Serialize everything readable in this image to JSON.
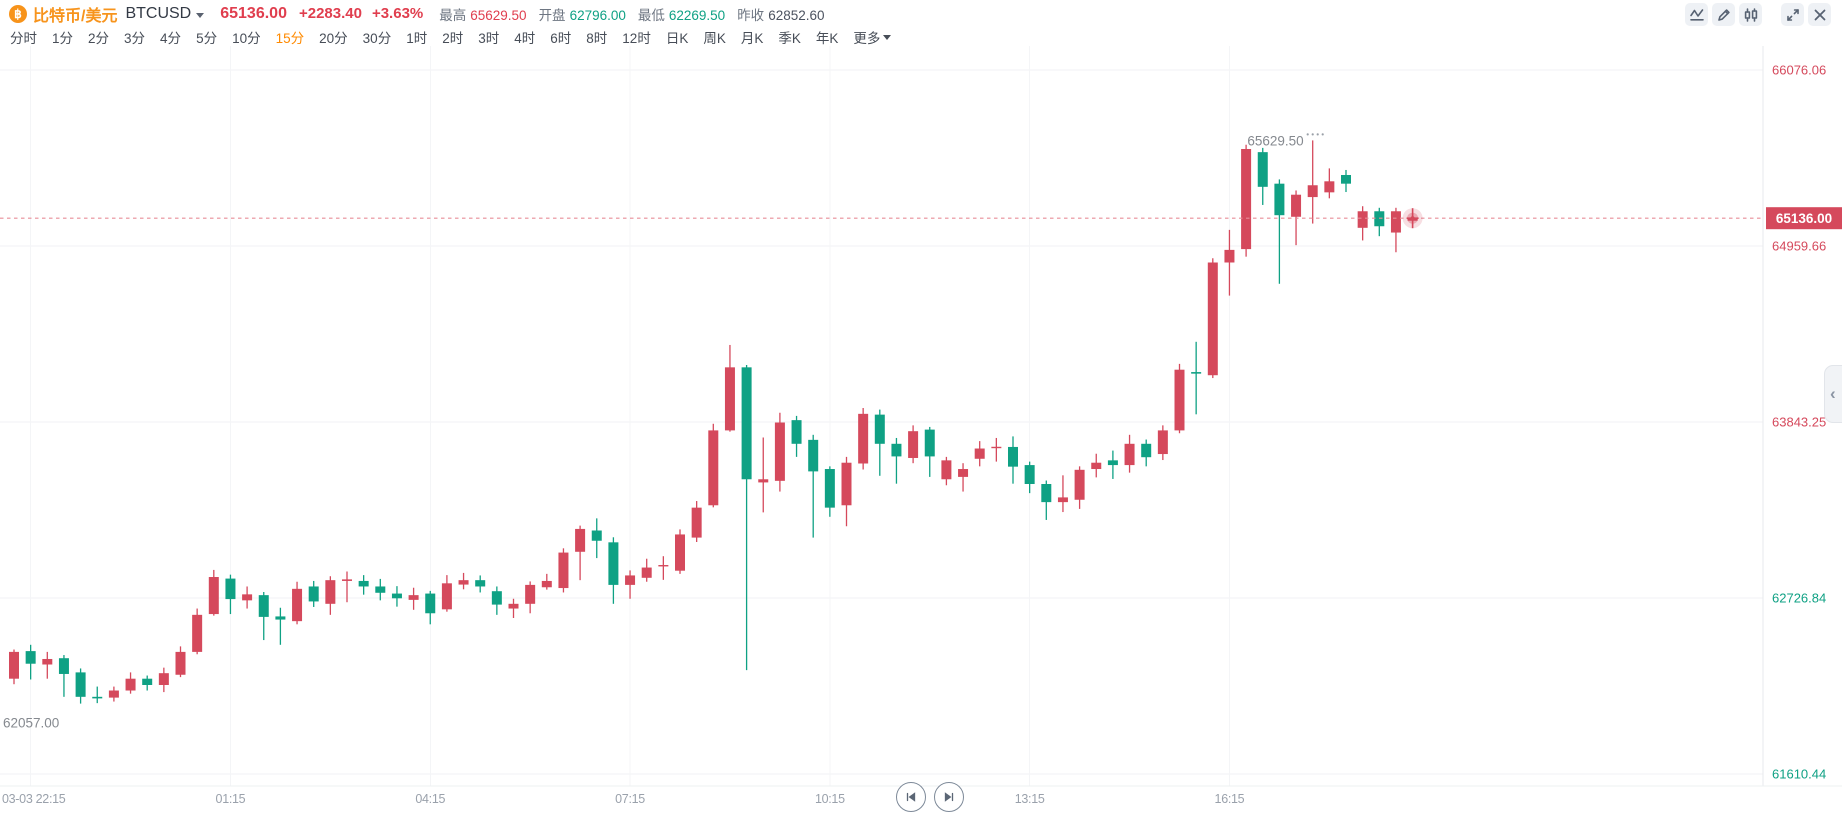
{
  "header": {
    "coin_icon": "฿",
    "symbol_cn": "比特币/美元",
    "symbol_code": "BTCUSD",
    "price": "65136.00",
    "change": "+2283.40",
    "change_pct": "+3.63%",
    "stats": [
      {
        "label": "最高",
        "value": "65629.50",
        "trend": "up"
      },
      {
        "label": "开盘",
        "value": "62796.00",
        "trend": "down"
      },
      {
        "label": "最低",
        "value": "62269.50",
        "trend": "down"
      },
      {
        "label": "昨收",
        "value": "62852.60",
        "trend": "neutral"
      }
    ]
  },
  "toolbar": {
    "buttons": [
      {
        "name": "indicator-line-icon"
      },
      {
        "name": "draw-pencil-icon"
      },
      {
        "name": "candlestick-style-icon"
      },
      {
        "name": "fullscreen-icon"
      },
      {
        "name": "close-icon"
      }
    ]
  },
  "tabs": {
    "items": [
      "分时",
      "1分",
      "2分",
      "3分",
      "4分",
      "5分",
      "10分",
      "15分",
      "20分",
      "30分",
      "1时",
      "2时",
      "3时",
      "4时",
      "6时",
      "8时",
      "12时",
      "日K",
      "周K",
      "月K",
      "季K",
      "年K"
    ],
    "selected": "15分",
    "more": "更多"
  },
  "chart_data": {
    "type": "candlestick",
    "symbol": "BTCUSD",
    "interval": "15分",
    "colors": {
      "up": "#d5495c",
      "down": "#0fa184",
      "grid": "#f1f2f4",
      "axis": "#e7e9ed",
      "current_line": "#e88d98"
    },
    "prev_close": 62852.6,
    "y_axis": {
      "labels": [
        {
          "text": "66076.06",
          "price": 66076.06
        },
        {
          "text": "64959.66",
          "price": 64959.66
        },
        {
          "text": "63843.25",
          "price": 63843.25
        },
        {
          "text": "62726.84",
          "price": 62726.84
        },
        {
          "text": "61610.44",
          "price": 61610.44
        }
      ]
    },
    "x_axis": {
      "labels": [
        {
          "text": "03-03 22:15",
          "index": 1
        },
        {
          "text": "01:15",
          "index": 13
        },
        {
          "text": "04:15",
          "index": 25
        },
        {
          "text": "07:15",
          "index": 37
        },
        {
          "text": "10:15",
          "index": 49
        },
        {
          "text": "13:15",
          "index": 61
        },
        {
          "text": "16:15",
          "index": 73
        }
      ]
    },
    "current_price": {
      "text": "65136.00",
      "price": 65136.0
    },
    "annotations": {
      "high": {
        "text": "65629.50",
        "price": 65629.5,
        "index": 78
      },
      "low": {
        "text": "62057.00",
        "price": 62057.0,
        "index": 4
      }
    },
    "ohlc_order": [
      "open",
      "high",
      "low",
      "close"
    ],
    "candles": [
      [
        62215,
        62400,
        62180,
        62385
      ],
      [
        62390,
        62430,
        62210,
        62310
      ],
      [
        62305,
        62385,
        62215,
        62340
      ],
      [
        62345,
        62365,
        62100,
        62245
      ],
      [
        62255,
        62280,
        62057,
        62100
      ],
      [
        62100,
        62165,
        62060,
        62090
      ],
      [
        62095,
        62165,
        62070,
        62140
      ],
      [
        62140,
        62255,
        62120,
        62215
      ],
      [
        62215,
        62235,
        62140,
        62175
      ],
      [
        62175,
        62285,
        62130,
        62250
      ],
      [
        62240,
        62420,
        62225,
        62385
      ],
      [
        62385,
        62660,
        62370,
        62620
      ],
      [
        62625,
        62905,
        62615,
        62860
      ],
      [
        62850,
        62875,
        62625,
        62720
      ],
      [
        62712,
        62800,
        62660,
        62750
      ],
      [
        62745,
        62765,
        62460,
        62607
      ],
      [
        62610,
        62665,
        62430,
        62590
      ],
      [
        62580,
        62830,
        62560,
        62785
      ],
      [
        62800,
        62835,
        62670,
        62705
      ],
      [
        62690,
        62865,
        62620,
        62840
      ],
      [
        62835,
        62895,
        62700,
        62845
      ],
      [
        62835,
        62872,
        62748,
        62800
      ],
      [
        62800,
        62848,
        62712,
        62760
      ],
      [
        62755,
        62802,
        62672,
        62725
      ],
      [
        62715,
        62792,
        62652,
        62745
      ],
      [
        62755,
        62772,
        62560,
        62630
      ],
      [
        62655,
        62872,
        62640,
        62820
      ],
      [
        62812,
        62886,
        62782,
        62840
      ],
      [
        62840,
        62870,
        62762,
        62800
      ],
      [
        62770,
        62800,
        62620,
        62685
      ],
      [
        62660,
        62722,
        62600,
        62690
      ],
      [
        62690,
        62832,
        62630,
        62810
      ],
      [
        62795,
        62880,
        62780,
        62835
      ],
      [
        62790,
        63042,
        62762,
        63015
      ],
      [
        63020,
        63186,
        62840,
        63165
      ],
      [
        63155,
        63232,
        62980,
        63090
      ],
      [
        63080,
        63112,
        62690,
        62810
      ],
      [
        62810,
        62902,
        62722,
        62870
      ],
      [
        62855,
        62976,
        62830,
        62920
      ],
      [
        62932,
        62992,
        62842,
        62936
      ],
      [
        62900,
        63162,
        62880,
        63130
      ],
      [
        63110,
        63342,
        63082,
        63300
      ],
      [
        63315,
        63832,
        63302,
        63790
      ],
      [
        63790,
        64332,
        63782,
        64190
      ],
      [
        64190,
        64205,
        62269.5,
        63480
      ],
      [
        63460,
        63745,
        63270,
        63480
      ],
      [
        63470,
        63902,
        63402,
        63840
      ],
      [
        63855,
        63882,
        63622,
        63705
      ],
      [
        63730,
        63762,
        63110,
        63530
      ],
      [
        63545,
        63562,
        63242,
        63300
      ],
      [
        63315,
        63622,
        63182,
        63585
      ],
      [
        63580,
        63932,
        63542,
        63895
      ],
      [
        63890,
        63922,
        63502,
        63705
      ],
      [
        63705,
        63742,
        63452,
        63625
      ],
      [
        63615,
        63822,
        63582,
        63785
      ],
      [
        63795,
        63812,
        63495,
        63625
      ],
      [
        63480,
        63622,
        63442,
        63600
      ],
      [
        63495,
        63582,
        63402,
        63545
      ],
      [
        63610,
        63722,
        63562,
        63675
      ],
      [
        63680,
        63742,
        63592,
        63686
      ],
      [
        63685,
        63752,
        63452,
        63560
      ],
      [
        63570,
        63592,
        63392,
        63450
      ],
      [
        63450,
        63472,
        63222,
        63335
      ],
      [
        63335,
        63505,
        63272,
        63365
      ],
      [
        63350,
        63562,
        63292,
        63540
      ],
      [
        63545,
        63642,
        63492,
        63585
      ],
      [
        63600,
        63662,
        63482,
        63570
      ],
      [
        63570,
        63762,
        63522,
        63705
      ],
      [
        63705,
        63732,
        63562,
        63620
      ],
      [
        63640,
        63822,
        63602,
        63790
      ],
      [
        63790,
        64212,
        63772,
        64175
      ],
      [
        64160,
        64352,
        63892,
        64150
      ],
      [
        64140,
        64882,
        64122,
        64855
      ],
      [
        64855,
        65062,
        64645,
        64935
      ],
      [
        64940,
        65602,
        64892,
        65575
      ],
      [
        65555,
        65582,
        65220,
        65335
      ],
      [
        65355,
        65382,
        64720,
        65155
      ],
      [
        65145,
        65312,
        64965,
        65285
      ],
      [
        65270,
        65629.5,
        65102,
        65345
      ],
      [
        65300,
        65452,
        65262,
        65370
      ],
      [
        65410,
        65442,
        65302,
        65355
      ],
      [
        65075,
        65212,
        64995,
        65180
      ],
      [
        65180,
        65202,
        65022,
        65085
      ],
      [
        65045,
        65202,
        64920,
        65180
      ],
      [
        65120,
        65165,
        65095,
        65136
      ]
    ]
  },
  "playback": {
    "buttons": [
      {
        "name": "skip-to-start"
      },
      {
        "name": "skip-to-end"
      }
    ]
  },
  "side_panel_toggle": {
    "chevron": "‹"
  }
}
